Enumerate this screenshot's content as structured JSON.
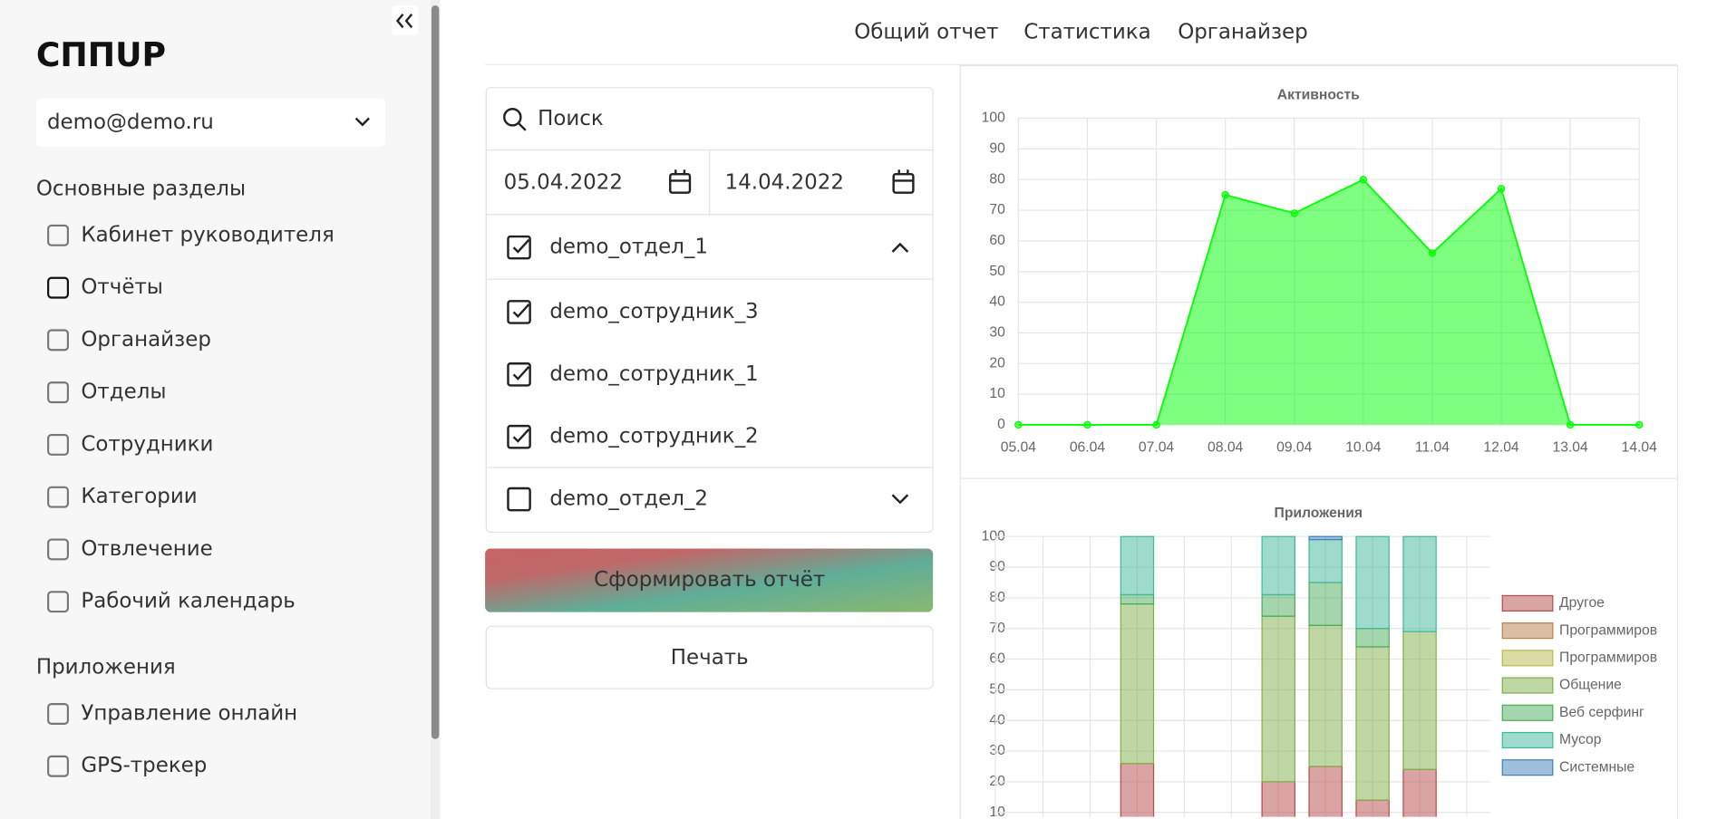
{
  "sidebar": {
    "logo": "СППUР",
    "account": "demo@demo.ru",
    "sections": [
      {
        "title": "Основные разделы",
        "items": [
          "Кабинет руководителя",
          "Отчёты",
          "Органайзер",
          "Отделы",
          "Сотрудники",
          "Категории",
          "Отвлечение",
          "Рабочий календарь"
        ]
      },
      {
        "title": "Приложения",
        "items": [
          "Управление онлайн",
          "GPS-трекер"
        ]
      }
    ],
    "active": {
      "section": 0,
      "item": 1
    }
  },
  "tabs": [
    "Общий отчет",
    "Статистика",
    "Органайзер"
  ],
  "active_tab": 1,
  "filters": {
    "search_placeholder": "Поиск",
    "date_from": "05.04.2022",
    "date_to": "14.04.2022",
    "groups": [
      {
        "name": "demo_отдел_1",
        "checked": true,
        "expanded": true,
        "members": [
          "demo_сотрудник_3",
          "demo_сотрудник_1",
          "demo_сотрудник_2"
        ]
      },
      {
        "name": "demo_отдел_2",
        "checked": false,
        "expanded": false
      }
    ]
  },
  "buttons": {
    "generate": "Сформировать отчёт",
    "print": "Печать"
  },
  "chart_data": [
    {
      "type": "area",
      "title": "Активность",
      "color": "#00ff00",
      "categories": [
        "05.04",
        "06.04",
        "07.04",
        "08.04",
        "09.04",
        "10.04",
        "11.04",
        "12.04",
        "13.04",
        "14.04"
      ],
      "values": [
        0,
        0,
        0,
        75,
        69,
        80,
        56,
        77,
        0,
        0
      ],
      "ylim": [
        0,
        100
      ],
      "yticks": [
        0,
        10,
        20,
        30,
        40,
        50,
        60,
        70,
        80,
        90,
        100
      ],
      "grid": true
    },
    {
      "type": "stacked_bar",
      "title": "Приложения",
      "legend": "right",
      "categories": [
        null,
        null,
        null,
        null,
        null,
        null,
        null,
        null,
        null,
        null
      ],
      "series": [
        {
          "name": "Другое",
          "color": "#b84a4a",
          "values": [
            null,
            null,
            26,
            null,
            null,
            20,
            25,
            14,
            24,
            null
          ]
        },
        {
          "name": "Программиров",
          "color": "#b8804a",
          "values": [
            null,
            null,
            0,
            null,
            null,
            0,
            0,
            0,
            0,
            null
          ]
        },
        {
          "name": "Программиров",
          "color": "#b8b84a",
          "values": [
            null,
            null,
            0,
            null,
            null,
            0,
            0,
            0,
            0,
            null
          ]
        },
        {
          "name": "Общение",
          "color": "#7fb04a",
          "values": [
            null,
            null,
            52,
            null,
            null,
            54,
            46,
            50,
            45,
            null
          ]
        },
        {
          "name": "Веб серфинг",
          "color": "#4aab5a",
          "values": [
            null,
            null,
            3,
            null,
            null,
            7,
            14,
            6,
            0,
            null
          ]
        },
        {
          "name": "Мусор",
          "color": "#3fb89a",
          "values": [
            null,
            null,
            19,
            null,
            null,
            19,
            14,
            30,
            31,
            null
          ]
        },
        {
          "name": "Системные",
          "color": "#3f7fb8",
          "values": [
            null,
            null,
            0,
            null,
            null,
            0,
            1,
            0,
            0,
            null
          ]
        }
      ],
      "ylim": [
        0,
        100
      ],
      "yticks": [
        10,
        20,
        30,
        40,
        50,
        60,
        70,
        80,
        90,
        100
      ],
      "grid": true
    }
  ]
}
